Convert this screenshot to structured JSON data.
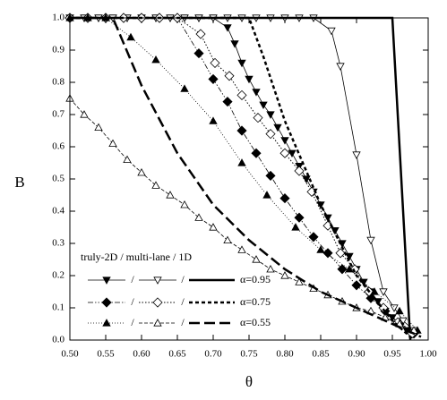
{
  "chart_data": {
    "type": "line",
    "x_label": "θ",
    "y_label": "B",
    "xlim": [
      0.5,
      1.0
    ],
    "ylim": [
      0.0,
      1.0
    ],
    "xticks": [
      {
        "value": 0.5,
        "label": "0.50"
      },
      0.55,
      {
        "value": 0.6,
        "label": "0.60"
      },
      0.65,
      {
        "value": 0.7,
        "label": "0.70"
      },
      0.75,
      {
        "value": 0.8,
        "label": "0.80"
      },
      0.85,
      {
        "value": 0.9,
        "label": "0.90"
      },
      0.95,
      {
        "value": 1.0,
        "label": "1.00"
      }
    ],
    "yticks": [
      {
        "value": 0.0,
        "label": "0.0"
      },
      0.1,
      0.2,
      0.3,
      0.4,
      0.5,
      0.6,
      0.7,
      0.8,
      0.9,
      {
        "value": 1.0,
        "label": "1.0"
      }
    ],
    "color": "#000000",
    "legend": {
      "title": "truly-2D / multi-lane / 1D",
      "separator": "/",
      "position": "lower left"
    },
    "series": [
      {
        "name": "α=0.95",
        "curves": [
          {
            "marker": "triangle-down-filled",
            "dash": "none",
            "width": 0.8,
            "x": [
              0.5,
              0.52,
              0.54,
              0.56,
              0.58,
              0.6,
              0.62,
              0.64,
              0.66,
              0.68,
              0.7,
              0.72,
              0.73,
              0.74,
              0.75,
              0.76,
              0.77,
              0.78,
              0.79,
              0.8,
              0.81,
              0.82,
              0.83,
              0.84,
              0.85,
              0.86,
              0.87,
              0.88,
              0.89,
              0.9,
              0.91,
              0.92,
              0.93,
              0.94,
              0.95,
              0.96,
              0.97
            ],
            "values": [
              1,
              1,
              1,
              1,
              1,
              1,
              1,
              1,
              1,
              1,
              1,
              0.97,
              0.92,
              0.86,
              0.81,
              0.77,
              0.73,
              0.7,
              0.66,
              0.62,
              0.58,
              0.54,
              0.5,
              0.46,
              0.42,
              0.38,
              0.34,
              0.3,
              0.26,
              0.22,
              0.18,
              0.15,
              0.12,
              0.09,
              0.07,
              0.05,
              0.03
            ]
          },
          {
            "marker": "triangle-down-open",
            "dash": "none",
            "width": 0.8,
            "x": [
              0.5,
              0.52,
              0.54,
              0.56,
              0.58,
              0.6,
              0.62,
              0.64,
              0.66,
              0.68,
              0.7,
              0.72,
              0.74,
              0.76,
              0.78,
              0.8,
              0.82,
              0.84,
              0.865,
              0.8775,
              0.9,
              0.92,
              0.9375,
              0.9525,
              0.965,
              0.98
            ],
            "values": [
              1,
              1,
              1,
              1,
              1,
              1,
              1,
              1,
              1,
              1,
              1,
              1,
              1,
              1,
              1,
              1,
              1,
              1,
              0.96,
              0.85,
              0.575,
              0.31,
              0.15,
              0.1,
              0.06,
              0.03
            ]
          },
          {
            "marker": "none",
            "dash": "none",
            "width": 2.5,
            "x": [
              0.5,
              0.95,
              0.975
            ],
            "values": [
              1,
              1,
              0
            ]
          }
        ]
      },
      {
        "name": "α=0.75",
        "curves": [
          {
            "marker": "diamond-filled",
            "dash": "6,2,1.5,2,1.5,2",
            "width": 0.8,
            "x": [
              0.5,
              0.525,
              0.55,
              0.575,
              0.6,
              0.625,
              0.65,
              0.68,
              0.7,
              0.72,
              0.74,
              0.76,
              0.78,
              0.8,
              0.82,
              0.84,
              0.86,
              0.88,
              0.9,
              0.92,
              0.94,
              0.96,
              0.98
            ],
            "values": [
              1,
              1,
              1,
              1,
              1,
              1,
              1,
              0.89,
              0.81,
              0.74,
              0.65,
              0.58,
              0.51,
              0.44,
              0.38,
              0.32,
              0.27,
              0.22,
              0.17,
              0.13,
              0.09,
              0.05,
              0.02
            ]
          },
          {
            "marker": "diamond-open",
            "dash": "1.5,2",
            "width": 1,
            "x": [
              0.5,
              0.525,
              0.55,
              0.575,
              0.6,
              0.625,
              0.65,
              0.6825,
              0.7025,
              0.7225,
              0.74,
              0.7625,
              0.78,
              0.8,
              0.82,
              0.8375,
              0.86,
              0.8775,
              0.8975,
              0.9175,
              0.9375,
              0.9575,
              0.9775
            ],
            "values": [
              1,
              1,
              1,
              1,
              1,
              1,
              1,
              0.95,
              0.86,
              0.82,
              0.76,
              0.69,
              0.64,
              0.58,
              0.525,
              0.46,
              0.355,
              0.27,
              0.22,
              0.15,
              0.1,
              0.055,
              0.02
            ]
          },
          {
            "marker": "none",
            "dash": "4,3",
            "width": 2.5,
            "x": [
              0.5,
              0.75,
              0.77,
              0.8,
              0.85,
              0.9,
              0.95,
              0.98
            ],
            "values": [
              1,
              1,
              0.88,
              0.68,
              0.42,
              0.2,
              0.06,
              0
            ]
          }
        ]
      },
      {
        "name": "α=0.55",
        "curves": [
          {
            "marker": "triangle-up-filled",
            "dash": "1,2",
            "width": 0.8,
            "x": [
              0.5,
              0.525,
              0.55,
              0.585,
              0.62,
              0.66,
              0.7,
              0.74,
              0.775,
              0.815,
              0.85,
              0.89,
              0.925,
              0.96,
              0.985
            ],
            "values": [
              1,
              1,
              1,
              0.94,
              0.87,
              0.78,
              0.68,
              0.55,
              0.45,
              0.35,
              0.28,
              0.22,
              0.15,
              0.09,
              0.03
            ]
          },
          {
            "marker": "triangle-up-open",
            "dash": "4,2",
            "width": 0.8,
            "x": [
              0.5,
              0.52,
              0.54,
              0.56,
              0.58,
              0.6,
              0.62,
              0.64,
              0.66,
              0.68,
              0.7,
              0.72,
              0.74,
              0.76,
              0.78,
              0.8,
              0.82,
              0.84,
              0.86,
              0.88,
              0.9,
              0.92,
              0.94,
              0.96,
              0.98
            ],
            "values": [
              0.75,
              0.7,
              0.66,
              0.61,
              0.56,
              0.52,
              0.48,
              0.45,
              0.42,
              0.38,
              0.35,
              0.31,
              0.28,
              0.25,
              0.22,
              0.2,
              0.18,
              0.16,
              0.14,
              0.12,
              0.1,
              0.09,
              0.07,
              0.05,
              0.03
            ]
          },
          {
            "marker": "none",
            "dash": "12,5",
            "width": 2.5,
            "x": [
              0.5,
              0.56,
              0.6,
              0.65,
              0.7,
              0.75,
              0.8,
              0.85,
              0.9,
              0.95,
              0.99
            ],
            "values": [
              1,
              1,
              0.79,
              0.58,
              0.42,
              0.31,
              0.22,
              0.15,
              0.1,
              0.05,
              0.01
            ]
          }
        ]
      }
    ]
  }
}
